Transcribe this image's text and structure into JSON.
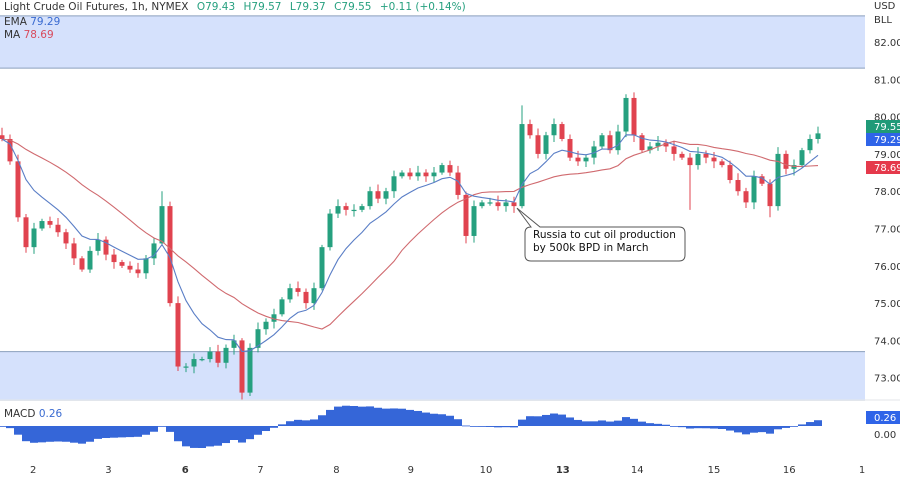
{
  "header": {
    "title": "Light Crude Oil Futures, 1h, NYMEX",
    "open": "O79.43",
    "high": "H79.57",
    "low": "L79.37",
    "close": "C79.55",
    "change": "+0.11 (+0.14%)"
  },
  "indicators": {
    "ema": {
      "label": "EMA",
      "value": "79.29"
    },
    "ma": {
      "label": "MA",
      "value": "78.69"
    },
    "macd": {
      "label": "MACD",
      "value": "0.26"
    }
  },
  "price_axis": {
    "currency": "USD",
    "unit": "BLL",
    "ticks": [
      "82.00",
      "81.00",
      "80.00",
      "79.00",
      "78.00",
      "77.00",
      "76.00",
      "75.00",
      "74.00",
      "73.00"
    ],
    "badges": {
      "last": "79.55",
      "ema": "79.29",
      "ma": "78.69"
    },
    "macd_badge": "0.26",
    "macd_zero": "0.00"
  },
  "annotation": {
    "line1": "Russia to cut oil production",
    "line2": "by 500k BPD in March"
  },
  "chart_data": {
    "type": "candlestick",
    "ylim": [
      72.3,
      82.7
    ],
    "close": [
      79.4,
      78.8,
      77.3,
      76.5,
      77.0,
      77.2,
      77.1,
      76.9,
      76.6,
      76.2,
      75.9,
      76.4,
      76.7,
      76.3,
      76.1,
      76.0,
      75.9,
      75.8,
      76.2,
      76.6,
      77.6,
      75.0,
      73.3,
      73.3,
      73.5,
      73.5,
      73.7,
      73.4,
      73.8,
      74.0,
      72.6,
      73.8,
      74.3,
      74.5,
      74.7,
      75.1,
      75.4,
      75.3,
      75.0,
      75.4,
      76.5,
      77.4,
      77.6,
      77.5,
      77.5,
      77.6,
      78.0,
      77.8,
      78.0,
      78.4,
      78.5,
      78.4,
      78.5,
      78.4,
      78.5,
      78.7,
      78.5,
      77.9,
      76.8,
      77.6,
      77.7,
      77.7,
      77.6,
      77.7,
      77.6,
      79.8,
      79.5,
      79.0,
      79.5,
      79.8,
      79.4,
      78.9,
      78.8,
      78.9,
      79.2,
      79.5,
      79.1,
      79.6,
      80.5,
      79.5,
      79.1,
      79.2,
      79.3,
      79.2,
      79.0,
      78.9,
      78.7,
      79.0,
      78.9,
      78.8,
      78.7,
      78.3,
      78.0,
      77.7,
      78.4,
      78.2,
      77.6,
      79.0,
      78.6,
      78.7,
      79.1,
      79.4,
      79.55
    ],
    "notable_extremes": [
      {
        "bar": 0,
        "high": 79.7
      },
      {
        "bar": 20,
        "high": 78.0
      },
      {
        "bar": 30,
        "low": 72.4
      },
      {
        "bar": 58,
        "low": 76.6
      },
      {
        "bar": 65,
        "high": 80.3
      },
      {
        "bar": 78,
        "high": 80.6
      },
      {
        "bar": 86,
        "low": 77.5
      },
      {
        "bar": 96,
        "low": 77.3
      }
    ],
    "support_resistance_zones": [
      {
        "from": 81.3,
        "to": 82.7
      },
      {
        "from": 72.4,
        "to": 73.7
      }
    ],
    "x_ticks": [
      {
        "label": "2",
        "bar": 3.9,
        "bold": false
      },
      {
        "label": "3",
        "bar": 13.3,
        "bold": false
      },
      {
        "label": "6",
        "bar": 22.9,
        "bold": true
      },
      {
        "label": "7",
        "bar": 32.3,
        "bold": false
      },
      {
        "label": "8",
        "bar": 41.8,
        "bold": false
      },
      {
        "label": "9",
        "bar": 51.1,
        "bold": false
      },
      {
        "label": "10",
        "bar": 60.5,
        "bold": false
      },
      {
        "label": "13",
        "bar": 70.1,
        "bold": true
      },
      {
        "label": "14",
        "bar": 79.4,
        "bold": false
      },
      {
        "label": "15",
        "bar": 89.0,
        "bold": false
      },
      {
        "label": "16",
        "bar": 98.4,
        "bold": false
      },
      {
        "label": "1",
        "bar": 107.5,
        "bold": false
      }
    ],
    "annotation_bar": 64,
    "colors": {
      "up": "#26a07f",
      "down": "#e0434f",
      "ema": "#5a7ec6",
      "ma": "#d06a6f",
      "zone_fill": "#d5e1fc",
      "zone_border": "#8a9fbd",
      "macd": "#3566d8",
      "badge_last": "#1f9a78",
      "badge_ema": "#2f64e8",
      "badge_ma": "#e5394b"
    }
  }
}
